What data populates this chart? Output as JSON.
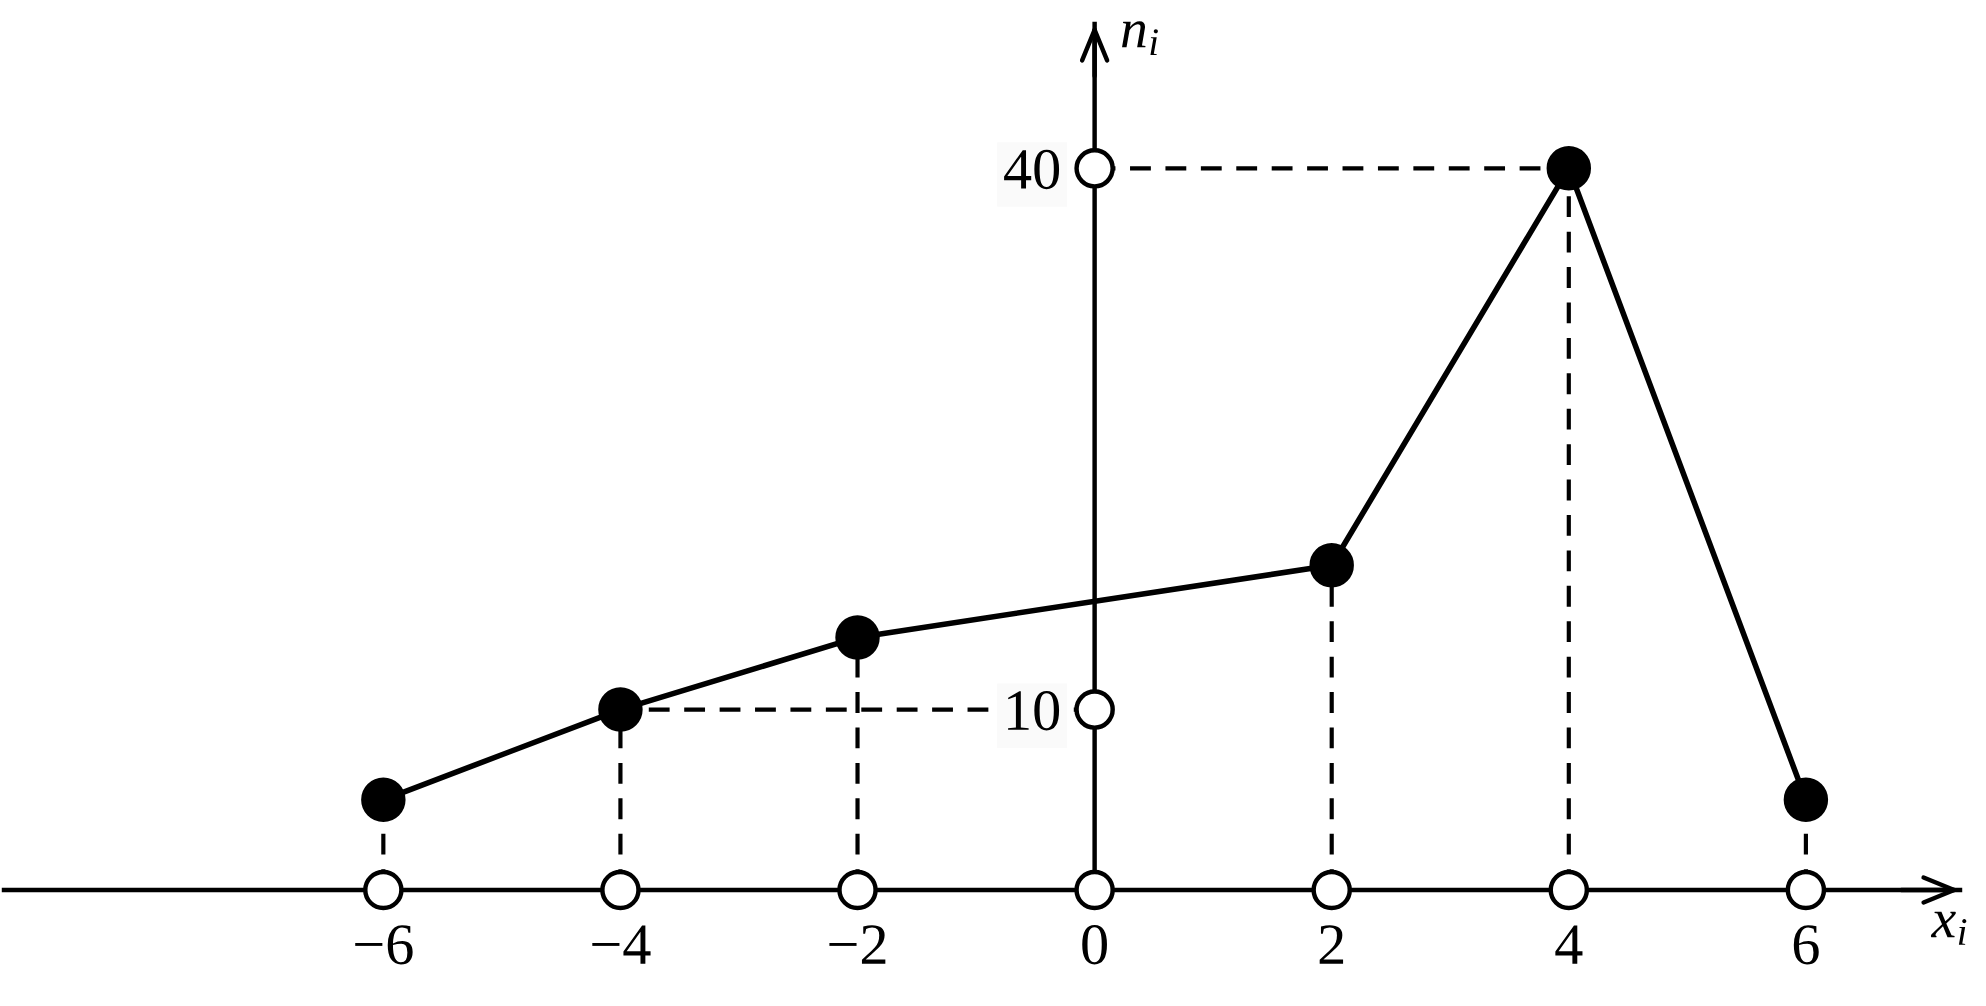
{
  "chart_data": {
    "type": "line",
    "xlabel": "x$_{i}$",
    "ylabel": "n$_{i}$",
    "x": [
      -6,
      -4,
      -2,
      2,
      4,
      6
    ],
    "series": [
      {
        "color": "#000000",
        "values": [
          5,
          10,
          14,
          18,
          40,
          5
        ]
      }
    ],
    "xlim": [
      -9.2,
      7.3
    ],
    "ylim": [
      0,
      48
    ],
    "xticks": [
      {
        "value": -6,
        "label": "−6"
      },
      {
        "value": -4,
        "label": "−4"
      },
      {
        "value": -2,
        "label": "−2"
      },
      0,
      2,
      4,
      6
    ],
    "yticks": [
      10,
      40
    ],
    "ref_lines": [
      {
        "axis": "x",
        "value": -6,
        "color": "#000000",
        "line_style": "dashed"
      },
      {
        "axis": "x",
        "value": -4,
        "color": "#000000",
        "line_style": "dashed"
      },
      {
        "axis": "x",
        "value": -2,
        "color": "#000000",
        "line_style": "dashed"
      },
      {
        "axis": "x",
        "value": 2,
        "color": "#000000",
        "line_style": "dashed"
      },
      {
        "axis": "x",
        "value": 4,
        "color": "#000000",
        "line_style": "dashed"
      },
      {
        "axis": "x",
        "value": 6,
        "color": "#000000",
        "line_style": "dashed"
      },
      {
        "axis": "y",
        "value": 10,
        "color": "#000000",
        "line_style": "dashed"
      },
      {
        "axis": "y",
        "value": 40,
        "color": "#000000",
        "line_style": "dashed"
      }
    ],
    "marker": "circle",
    "line_style": "solid"
  }
}
